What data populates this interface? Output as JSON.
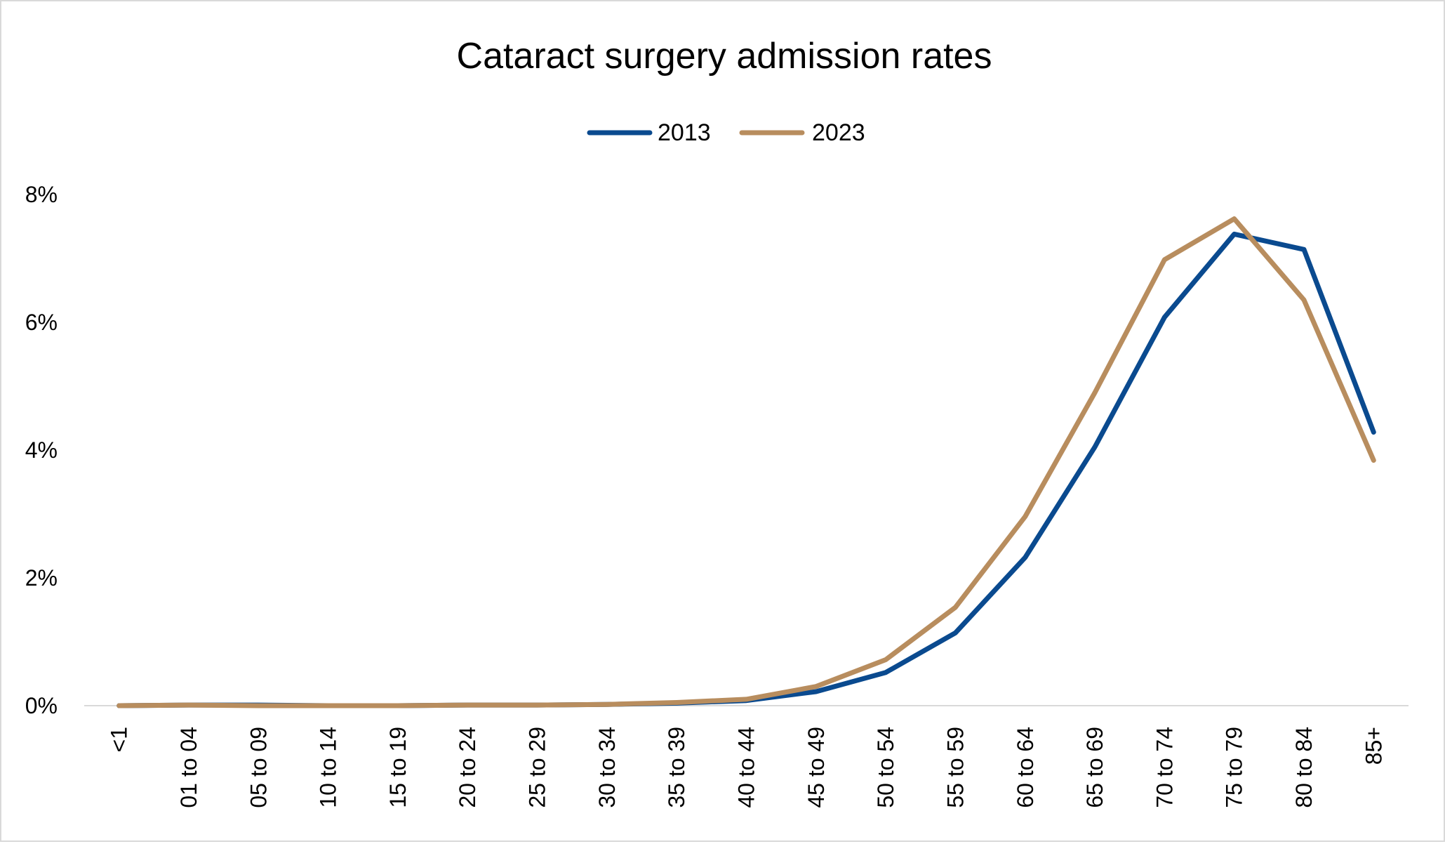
{
  "chart_data": {
    "type": "line",
    "title": "Cataract surgery admission rates",
    "xlabel": "",
    "ylabel": "",
    "categories": [
      "<1",
      "01 to 04",
      "05 to 09",
      "10 to 14",
      "15 to 19",
      "20 to 24",
      "25 to 29",
      "30 to 34",
      "35 to 39",
      "40 to 44",
      "45 to 49",
      "50 to 54",
      "55 to 59",
      "60 to 64",
      "65 to 69",
      "70 to 74",
      "75 to 79",
      "80 to 84",
      "85+"
    ],
    "series": [
      {
        "name": "2013",
        "color": "#0a4a8f",
        "values": [
          0.0,
          0.01,
          0.01,
          0.0,
          0.0,
          0.01,
          0.01,
          0.02,
          0.04,
          0.08,
          0.22,
          0.52,
          1.14,
          2.32,
          4.05,
          6.08,
          7.38,
          7.14,
          4.28
        ]
      },
      {
        "name": "2023",
        "color": "#b88d5e",
        "values": [
          0.0,
          0.01,
          0.0,
          0.0,
          0.0,
          0.01,
          0.01,
          0.02,
          0.05,
          0.1,
          0.3,
          0.72,
          1.54,
          2.96,
          4.9,
          6.98,
          7.62,
          6.35,
          3.84
        ]
      }
    ],
    "yticks": [
      "0%",
      "2%",
      "4%",
      "6%",
      "8%"
    ],
    "ytick_values": [
      0,
      2,
      4,
      6,
      8
    ],
    "ylim": [
      0,
      8
    ],
    "grid": false,
    "legend_position": "top-center"
  }
}
